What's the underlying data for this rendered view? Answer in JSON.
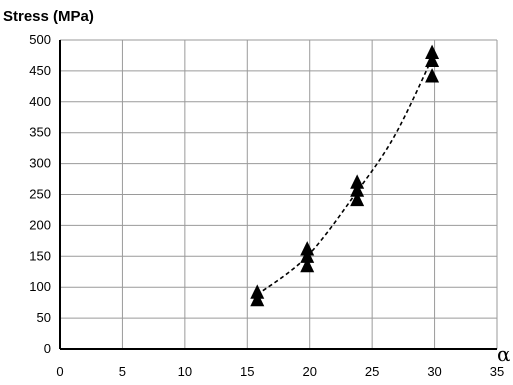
{
  "chart_data": {
    "type": "scatter",
    "title": "",
    "ylabel": "Stress (MPa)",
    "xlabel": "α",
    "xlim": [
      0,
      35
    ],
    "ylim": [
      0,
      500
    ],
    "xticks": [
      0,
      5,
      10,
      15,
      20,
      25,
      30,
      35
    ],
    "yticks": [
      0,
      50,
      100,
      150,
      200,
      250,
      300,
      350,
      400,
      450,
      500
    ],
    "grid": true,
    "marker": "triangle",
    "series": [
      {
        "points": [
          {
            "x": 15.8,
            "y": 90
          },
          {
            "x": 15.8,
            "y": 78
          },
          {
            "x": 19.8,
            "y": 160
          },
          {
            "x": 19.8,
            "y": 148
          },
          {
            "x": 19.8,
            "y": 133
          },
          {
            "x": 23.8,
            "y": 268
          },
          {
            "x": 23.8,
            "y": 255
          },
          {
            "x": 23.8,
            "y": 240
          },
          {
            "x": 29.8,
            "y": 478
          },
          {
            "x": 29.8,
            "y": 465
          },
          {
            "x": 29.8,
            "y": 440
          }
        ]
      }
    ],
    "trendline": {
      "style": "dashed",
      "points": [
        {
          "x": 15.8,
          "y": 88
        },
        {
          "x": 19.8,
          "y": 150
        },
        {
          "x": 23.8,
          "y": 255
        },
        {
          "x": 26.8,
          "y": 345
        },
        {
          "x": 29.8,
          "y": 470
        }
      ]
    },
    "colors": {
      "marker": "#000000",
      "grid": "#9a9a9a",
      "axis": "#000000",
      "trend": "#000000"
    }
  }
}
